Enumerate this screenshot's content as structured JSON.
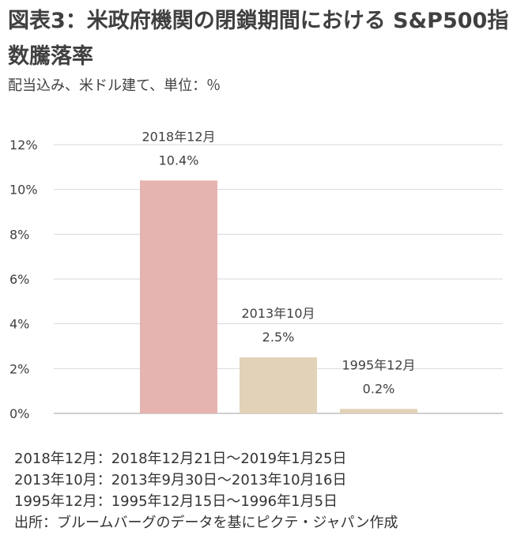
{
  "header": {
    "title": "図表3：米政府機関の閉鎖期間における S&P500指数騰落率",
    "subtitle": "配当込み、米ドル建て、単位：％"
  },
  "chart_data": {
    "type": "bar",
    "title": "米政府機関の閉鎖期間における S&P500指数騰落率",
    "categories": [
      "2018年12月",
      "2013年10月",
      "1995年12月"
    ],
    "values": [
      10.4,
      2.5,
      0.2
    ],
    "value_labels": [
      "10.4%",
      "2.5%",
      "0.2%"
    ],
    "bar_colors": [
      "#e6b4b0",
      "#e2d2b8",
      "#e2d2b8"
    ],
    "ylim": [
      0,
      12
    ],
    "yticks": [
      0,
      2,
      4,
      6,
      8,
      10,
      12
    ],
    "ytick_labels": [
      "0%",
      "2%",
      "4%",
      "6%",
      "8%",
      "10%",
      "12%"
    ],
    "grid": true,
    "xlabel": "",
    "ylabel": ""
  },
  "notes": {
    "line1": "2018年12月：2018年12月21日～2019年1月25日",
    "line2": "2013年10月：2013年9月30日～2013年10月16日",
    "line3": "1995年12月：1995年12月15日～1996年1月5日",
    "source": "出所：ブルームバーグのデータを基にピクテ・ジャパン作成"
  }
}
